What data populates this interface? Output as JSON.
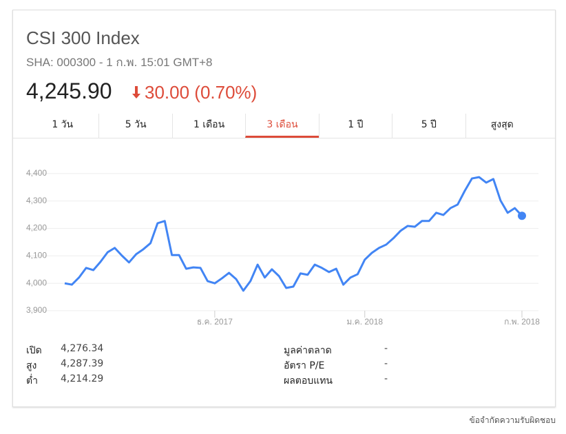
{
  "header": {
    "title": "CSI 300 Index",
    "subtitle": "SHA: 000300 - 1 ก.พ. 15:01 GMT+8",
    "price": "4,245.90",
    "change": "30.00 (0.70%)"
  },
  "tabs": [
    "1 วัน",
    "5 วัน",
    "1 เดือน",
    "3 เดือน",
    "1 ปี",
    "5 ปี",
    "สูงสุด"
  ],
  "selected_tab": 3,
  "chart_data": {
    "type": "line",
    "categories": [
      null,
      null,
      null,
      null,
      null,
      null,
      null,
      null,
      null,
      null,
      null,
      null,
      null,
      null,
      null,
      null,
      null,
      null,
      null,
      null,
      null,
      "ธ.ค. 2017",
      null,
      null,
      null,
      null,
      null,
      null,
      null,
      null,
      null,
      null,
      null,
      null,
      null,
      null,
      null,
      null,
      null,
      null,
      null,
      null,
      "ม.ค. 2018",
      null,
      null,
      null,
      null,
      null,
      null,
      null,
      null,
      null,
      null,
      null,
      null,
      null,
      null,
      null,
      null,
      null,
      null,
      null,
      null,
      null,
      "ก.พ. 2018"
    ],
    "series": [
      {
        "color": "#4285f4",
        "values": [
          4000,
          3995,
          4021,
          4056,
          4048,
          4078,
          4113,
          4129,
          4101,
          4076,
          4106,
          4124,
          4146,
          4219,
          4227,
          4103,
          4103,
          4053,
          4058,
          4056,
          4008,
          4000,
          4018,
          4038,
          4015,
          3973,
          4008,
          4068,
          4021,
          4051,
          4026,
          3983,
          3988,
          4036,
          4031,
          4068,
          4056,
          4041,
          4053,
          3995,
          4021,
          4033,
          4086,
          4111,
          4129,
          4141,
          4164,
          4191,
          4209,
          4206,
          4227,
          4227,
          4257,
          4249,
          4274,
          4287,
          4337,
          4382,
          4387,
          4367,
          4380,
          4302,
          4257,
          4274,
          4245.9
        ]
      }
    ],
    "ylim": [
      3875,
      4450
    ],
    "yticks": [
      {
        "value": 3900,
        "label": "3,900"
      },
      {
        "value": 4000,
        "label": "4,000"
      },
      {
        "value": 4100,
        "label": "4,100"
      },
      {
        "value": 4200,
        "label": "4,200"
      },
      {
        "value": 4300,
        "label": "4,300"
      },
      {
        "value": 4400,
        "label": "4,400"
      }
    ],
    "grid": true
  },
  "stats_left": [
    {
      "label": "เปิด",
      "value": "4,276.34"
    },
    {
      "label": "สูง",
      "value": "4,287.39"
    },
    {
      "label": "ต่ำ",
      "value": "4,214.29"
    }
  ],
  "stats_right": [
    {
      "label": "มูลค่าตลาด",
      "value": "-"
    },
    {
      "label": "อัตรา P/E",
      "value": "-"
    },
    {
      "label": "ผลตอบแทน",
      "value": "-"
    }
  ],
  "footer": "ข้อจำกัดความรับผิดชอบ"
}
